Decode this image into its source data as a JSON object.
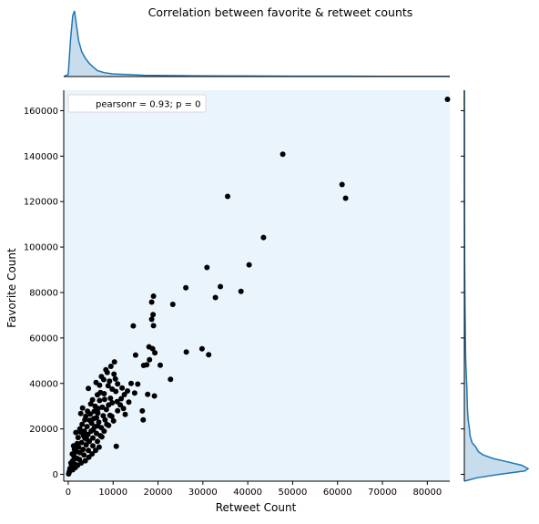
{
  "chart_data": {
    "type": "scatter",
    "title": "Correlation between favorite & retweet counts",
    "xlabel": "Retweet Count",
    "ylabel": "Favorite Count",
    "xlim": [
      -1000,
      85000
    ],
    "ylim": [
      -3000,
      169000
    ],
    "xticks": [
      "0",
      "10000",
      "20000",
      "30000",
      "40000",
      "50000",
      "60000",
      "70000",
      "80000"
    ],
    "yticks": [
      "0",
      "20000",
      "40000",
      "60000",
      "80000",
      "100000",
      "120000",
      "140000",
      "160000"
    ],
    "legend": {
      "label": "pearsonr = 0.93; p = 0",
      "position": "top-left"
    },
    "colors": {
      "points": "#000000",
      "plot_background": "#eaf4fc",
      "kde_line": "#1f77b4",
      "kde_fill": "#c7dcec"
    },
    "grid": false,
    "points": [
      [
        84500,
        165000
      ],
      [
        47800,
        140800
      ],
      [
        61000,
        127500
      ],
      [
        61800,
        121500
      ],
      [
        35500,
        122300
      ],
      [
        43500,
        104200
      ],
      [
        40300,
        92200
      ],
      [
        30900,
        91000
      ],
      [
        38500,
        80500
      ],
      [
        33900,
        82600
      ],
      [
        32800,
        77800
      ],
      [
        26200,
        82100
      ],
      [
        23300,
        74800
      ],
      [
        29800,
        55200
      ],
      [
        31300,
        52600
      ],
      [
        26300,
        53800
      ],
      [
        19000,
        78400
      ],
      [
        18600,
        75800
      ],
      [
        18900,
        70300
      ],
      [
        18600,
        68200
      ],
      [
        19000,
        65400
      ],
      [
        14500,
        65300
      ],
      [
        18000,
        56100
      ],
      [
        18800,
        55300
      ],
      [
        19300,
        53500
      ],
      [
        18100,
        50400
      ],
      [
        15000,
        52500
      ],
      [
        16800,
        47900
      ],
      [
        17500,
        48200
      ],
      [
        20500,
        48000
      ],
      [
        22800,
        41800
      ],
      [
        17700,
        35200
      ],
      [
        19200,
        34500
      ],
      [
        16500,
        27900
      ],
      [
        16700,
        24000
      ],
      [
        15500,
        39700
      ],
      [
        14000,
        40000
      ],
      [
        13200,
        36700
      ],
      [
        12500,
        35100
      ],
      [
        11800,
        33300
      ],
      [
        14800,
        35800
      ],
      [
        11000,
        39800
      ],
      [
        10200,
        44100
      ],
      [
        9500,
        47500
      ],
      [
        10300,
        49500
      ],
      [
        8700,
        44800
      ],
      [
        7900,
        41700
      ],
      [
        8400,
        46000
      ],
      [
        10500,
        42000
      ],
      [
        12000,
        38000
      ],
      [
        13500,
        31800
      ],
      [
        11000,
        28000
      ],
      [
        10100,
        23500
      ],
      [
        10700,
        12300
      ],
      [
        12700,
        26400
      ],
      [
        9000,
        30500
      ],
      [
        9800,
        31500
      ],
      [
        6500,
        35000
      ],
      [
        7000,
        39200
      ],
      [
        6200,
        40400
      ],
      [
        7200,
        36000
      ],
      [
        8100,
        33000
      ],
      [
        6700,
        29000
      ],
      [
        5400,
        32800
      ],
      [
        4500,
        37800
      ],
      [
        5000,
        31000
      ],
      [
        5800,
        27700
      ],
      [
        6300,
        25000
      ],
      [
        7800,
        25800
      ],
      [
        8600,
        22000
      ],
      [
        9300,
        26000
      ],
      [
        8000,
        19000
      ],
      [
        7200,
        17000
      ],
      [
        6600,
        21300
      ],
      [
        5600,
        19700
      ],
      [
        4800,
        23800
      ],
      [
        4300,
        27800
      ],
      [
        3700,
        24000
      ],
      [
        3200,
        29200
      ],
      [
        2800,
        26800
      ],
      [
        4200,
        21000
      ],
      [
        3600,
        19000
      ],
      [
        2800,
        18500
      ],
      [
        2200,
        16200
      ],
      [
        1700,
        18400
      ],
      [
        1200,
        12500
      ],
      [
        900,
        9000
      ],
      [
        600,
        5000
      ],
      [
        300,
        1500
      ],
      [
        100,
        200
      ],
      [
        200,
        800
      ],
      [
        400,
        2500
      ],
      [
        700,
        3500
      ],
      [
        1000,
        6000
      ],
      [
        1300,
        8000
      ],
      [
        1500,
        4500
      ],
      [
        1800,
        10000
      ],
      [
        2000,
        7000
      ],
      [
        2300,
        12000
      ],
      [
        2600,
        9500
      ],
      [
        3000,
        14000
      ],
      [
        3300,
        11000
      ],
      [
        3700,
        16000
      ],
      [
        4000,
        13000
      ],
      [
        4400,
        17500
      ],
      [
        4700,
        14500
      ],
      [
        5100,
        19000
      ],
      [
        5500,
        16000
      ],
      [
        5900,
        21000
      ],
      [
        6300,
        18000
      ],
      [
        6800,
        23000
      ],
      [
        7400,
        20500
      ],
      [
        8200,
        24000
      ],
      [
        9000,
        21500
      ],
      [
        9700,
        25500
      ],
      [
        2500,
        6500
      ],
      [
        3500,
        8500
      ],
      [
        4500,
        10500
      ],
      [
        5500,
        12500
      ],
      [
        6500,
        14500
      ],
      [
        7500,
        16500
      ],
      [
        1000,
        2000
      ],
      [
        1600,
        3000
      ],
      [
        2100,
        4000
      ],
      [
        2900,
        5000
      ],
      [
        3800,
        6000
      ],
      [
        4600,
        7500
      ],
      [
        5300,
        9000
      ],
      [
        6100,
        10500
      ],
      [
        6900,
        12000
      ],
      [
        3100,
        22000
      ],
      [
        3900,
        25500
      ],
      [
        4900,
        26500
      ],
      [
        5700,
        24500
      ],
      [
        6600,
        27000
      ],
      [
        7600,
        29500
      ],
      [
        8500,
        28500
      ],
      [
        9400,
        33500
      ],
      [
        10600,
        36500
      ],
      [
        11600,
        30500
      ],
      [
        12300,
        29000
      ],
      [
        10900,
        32000
      ],
      [
        9800,
        37500
      ],
      [
        8900,
        39000
      ],
      [
        7400,
        43000
      ],
      [
        2000,
        13500
      ],
      [
        1400,
        11000
      ],
      [
        2600,
        20000
      ],
      [
        3400,
        17000
      ],
      [
        4100,
        15500
      ],
      [
        5200,
        22500
      ],
      [
        6000,
        30000
      ],
      [
        7000,
        32500
      ],
      [
        8000,
        35500
      ],
      [
        9200,
        41000
      ]
    ],
    "x_density": [
      [
        -1000,
        0.0
      ],
      [
        0,
        0.03
      ],
      [
        500,
        0.55
      ],
      [
        1000,
        0.93
      ],
      [
        1400,
        1.0
      ],
      [
        1800,
        0.8
      ],
      [
        2300,
        0.55
      ],
      [
        3000,
        0.38
      ],
      [
        3800,
        0.28
      ],
      [
        4700,
        0.2
      ],
      [
        5500,
        0.15
      ],
      [
        6500,
        0.09
      ],
      [
        8000,
        0.06
      ],
      [
        10000,
        0.04
      ],
      [
        13000,
        0.03
      ],
      [
        17000,
        0.02
      ],
      [
        22000,
        0.015
      ],
      [
        30000,
        0.01
      ],
      [
        40000,
        0.008
      ],
      [
        50000,
        0.006
      ],
      [
        60000,
        0.005
      ],
      [
        70000,
        0.004
      ],
      [
        85000,
        0.003
      ]
    ],
    "y_density": [
      [
        -3000,
        0.0
      ],
      [
        -1500,
        0.2
      ],
      [
        0,
        0.55
      ],
      [
        1500,
        0.95
      ],
      [
        2500,
        1.0
      ],
      [
        4000,
        0.9
      ],
      [
        5500,
        0.68
      ],
      [
        7000,
        0.45
      ],
      [
        8500,
        0.3
      ],
      [
        10000,
        0.22
      ],
      [
        12000,
        0.18
      ],
      [
        14000,
        0.12
      ],
      [
        17000,
        0.09
      ],
      [
        20000,
        0.08
      ],
      [
        24000,
        0.06
      ],
      [
        28000,
        0.05
      ],
      [
        33000,
        0.045
      ],
      [
        38000,
        0.04
      ],
      [
        44000,
        0.03
      ],
      [
        52000,
        0.02
      ],
      [
        62000,
        0.015
      ],
      [
        75000,
        0.01
      ],
      [
        90000,
        0.005
      ],
      [
        110000,
        0.003
      ],
      [
        130000,
        0.002
      ],
      [
        150000,
        0.001
      ],
      [
        169000,
        0.0
      ]
    ]
  }
}
